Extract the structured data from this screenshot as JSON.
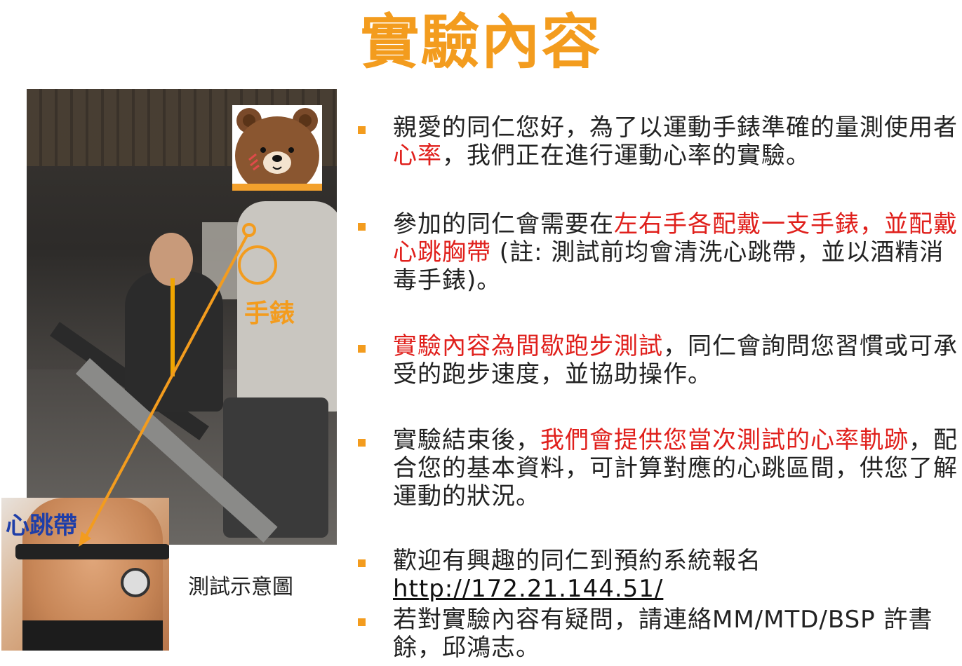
{
  "slide": {
    "title": "實驗內容",
    "photo_labels": {
      "watch": "手錶",
      "chest_strap": "心跳帶",
      "caption": "測試示意圖"
    },
    "colors": {
      "accent": "#f39c1e",
      "highlight": "#e0201c",
      "chest_label": "#1f3ea8",
      "text": "#222222"
    },
    "bullets": [
      {
        "p1": "親愛的同仁您好，為了以運動手錶準確的量測使用者",
        "p2_red": "心率",
        "p3": "，我們正在進行運動心率的實驗。"
      },
      {
        "p1": "參加的同仁會需要在",
        "p2_red": "左右手各配戴一支手錶，並配戴心跳胸帶",
        "p3": " (註: 測試前均會清洗心跳帶，並以酒精消毒手錶)。"
      },
      {
        "p1_red": "實驗內容為間歇跑步測試",
        "p2": "，同仁會詢問您習慣或可承受的跑步速度，並協助操作。"
      },
      {
        "p1": "實驗結束後，",
        "p2_red": "我們會提供您當次測試的心率軌跡",
        "p3": "，配合您的基本資料，可計算對應的心跳區間，供您了解運動的狀況。"
      },
      {
        "p1": "歡迎有興趣的同仁到預約系統報名",
        "link": "http://172.21.144.51/"
      },
      {
        "p1": "若對實驗內容有疑問，請連絡MM/MTD/BSP 許書餘，邱鴻志。"
      }
    ]
  }
}
